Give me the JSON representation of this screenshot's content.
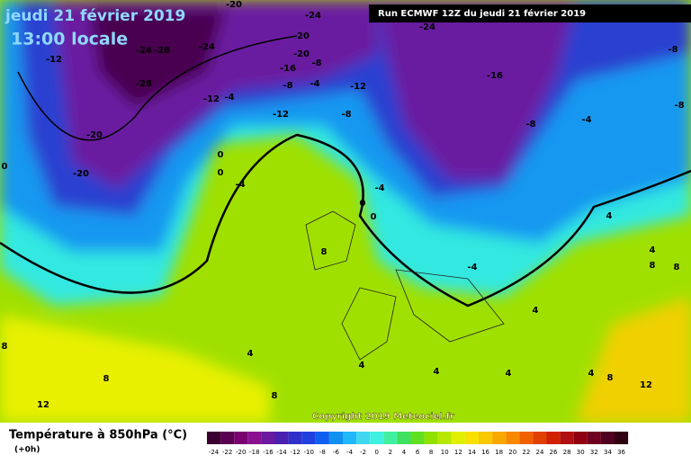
{
  "header": {
    "date": "jeudi 21 février 2019",
    "time": "13:00 locale",
    "run": "Run ECMWF 12Z du jeudi 21 février 2019"
  },
  "copyright": "Copyright 2019 Meteociel.fr",
  "map": {
    "labels": [
      "-20",
      "-24",
      "-24",
      "-20",
      "-20",
      "-12",
      "-24",
      "-28",
      "-24",
      "-28",
      "-16",
      "-8",
      "-8",
      "-4",
      "-12",
      "-16",
      "-8",
      "-12",
      "-4",
      "-12",
      "-8",
      "-8",
      "-4",
      "-8",
      "-20",
      "-20",
      "0",
      "0",
      "0",
      "-4",
      "-4",
      "0",
      "0",
      "8",
      "-4",
      "4",
      "4",
      "8",
      "8",
      "4",
      "8",
      "4",
      "4",
      "4",
      "4",
      "4",
      "8",
      "8",
      "12",
      "12",
      "8"
    ]
  },
  "legend": {
    "title": "Température à 850hPa (°C)",
    "subtitle": "(+0h)",
    "ticks": [
      -24,
      -22,
      -20,
      -18,
      -16,
      -14,
      -12,
      -10,
      -8,
      -6,
      -4,
      -2,
      0,
      2,
      4,
      6,
      8,
      10,
      12,
      14,
      16,
      18,
      20,
      22,
      24,
      26,
      28,
      30,
      32,
      34,
      36
    ],
    "colors": [
      "#3a0030",
      "#5a0050",
      "#7a0070",
      "#8a1090",
      "#6a1aa0",
      "#4a20b0",
      "#3030c8",
      "#2040e0",
      "#1060f0",
      "#1090f0",
      "#20b8f8",
      "#40d8f0",
      "#40f0e0",
      "#40f0a0",
      "#40e060",
      "#60e020",
      "#90e000",
      "#b8e800",
      "#e0f000",
      "#f8e000",
      "#f8c800",
      "#f8a800",
      "#f88800",
      "#f06000",
      "#e04000",
      "#d02000",
      "#b01010",
      "#900010",
      "#700020",
      "#500020",
      "#300010"
    ]
  }
}
